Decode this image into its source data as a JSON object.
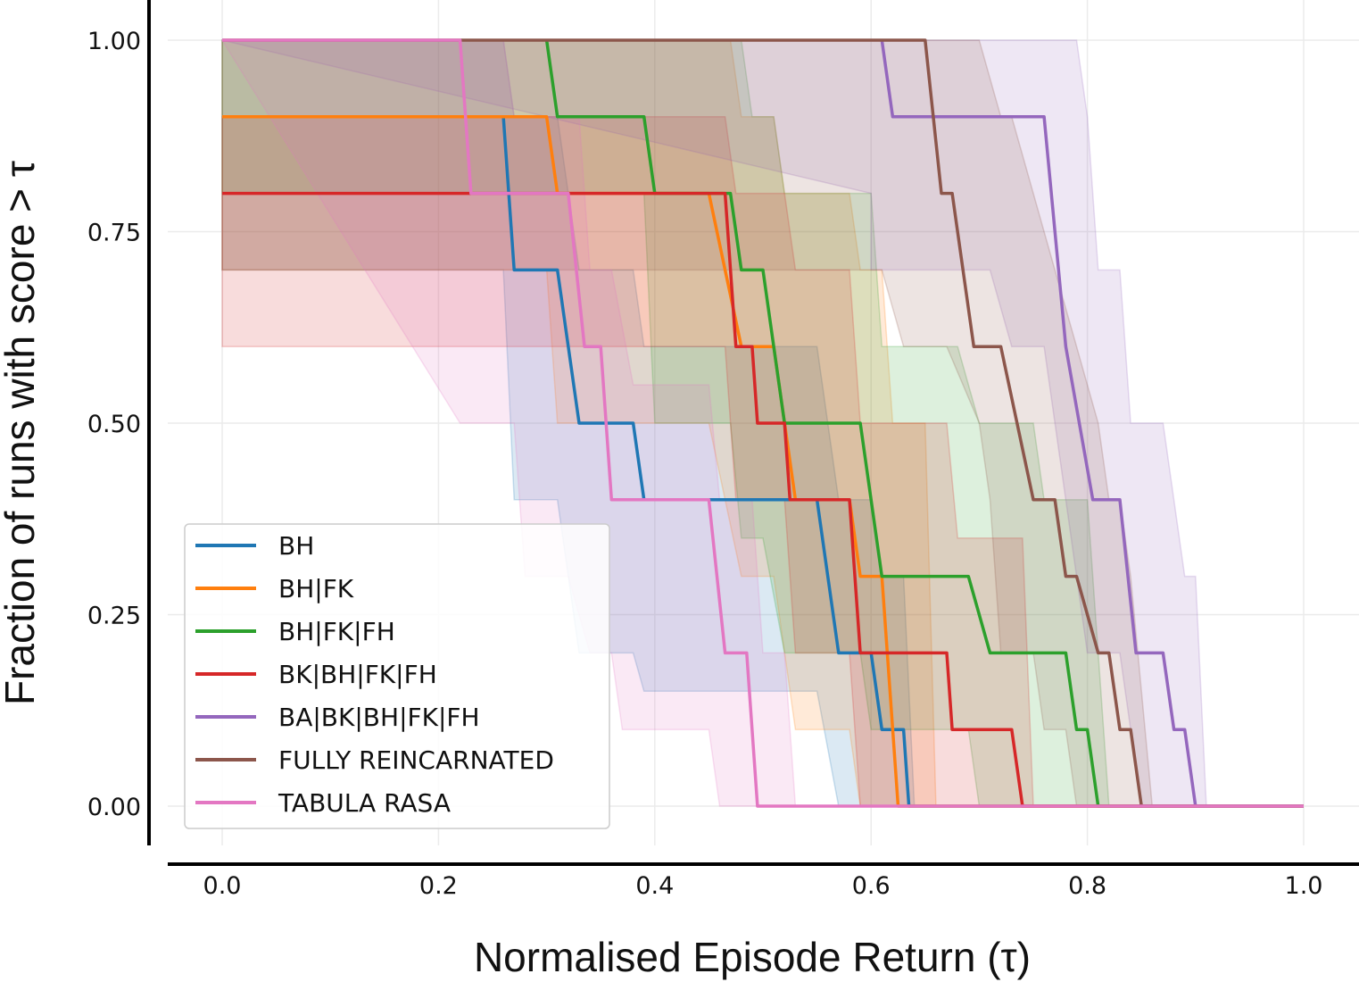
{
  "chart_data": {
    "type": "line",
    "title": "",
    "xlabel": "Normalised Episode Return (τ)",
    "ylabel": "Fraction of runs with score > τ",
    "xlim": [
      -0.05,
      1.05
    ],
    "ylim": [
      -0.05,
      1.05
    ],
    "x_ticks": [
      0.0,
      0.2,
      0.4,
      0.6,
      0.8,
      1.0
    ],
    "x_tick_labels": [
      "0.0",
      "0.2",
      "0.4",
      "0.6",
      "0.8",
      "1.0"
    ],
    "y_ticks": [
      0.0,
      0.25,
      0.5,
      0.75,
      1.0
    ],
    "y_tick_labels": [
      "0.00",
      "0.25",
      "0.50",
      "0.75",
      "1.00"
    ],
    "grid": true,
    "step": true,
    "legend_position": "lower-left",
    "series": [
      {
        "name": "BH",
        "color": "#1f77b4",
        "points": [
          [
            0.26,
            0.9
          ],
          [
            0.27,
            0.7
          ],
          [
            0.31,
            0.7
          ],
          [
            0.33,
            0.5
          ],
          [
            0.38,
            0.5
          ],
          [
            0.39,
            0.4
          ],
          [
            0.55,
            0.4
          ],
          [
            0.57,
            0.2
          ],
          [
            0.6,
            0.2
          ],
          [
            0.61,
            0.1
          ],
          [
            0.63,
            0.1
          ],
          [
            0.635,
            0.0
          ],
          [
            1.0,
            0.0
          ]
        ],
        "band_upper": [
          [
            0.0,
            1.0
          ],
          [
            0.26,
            1.0
          ],
          [
            0.27,
            0.9
          ],
          [
            0.31,
            0.9
          ],
          [
            0.33,
            0.7
          ],
          [
            0.38,
            0.7
          ],
          [
            0.39,
            0.6
          ],
          [
            0.55,
            0.6
          ],
          [
            0.57,
            0.4
          ],
          [
            0.6,
            0.4
          ],
          [
            0.61,
            0.3
          ],
          [
            0.63,
            0.3
          ],
          [
            0.64,
            0.0
          ],
          [
            1.0,
            0.0
          ]
        ],
        "band_lower": [
          [
            0.0,
            0.7
          ],
          [
            0.26,
            0.7
          ],
          [
            0.27,
            0.4
          ],
          [
            0.31,
            0.4
          ],
          [
            0.33,
            0.2
          ],
          [
            0.38,
            0.2
          ],
          [
            0.39,
            0.15
          ],
          [
            0.55,
            0.15
          ],
          [
            0.57,
            0.0
          ],
          [
            1.0,
            0.0
          ]
        ]
      },
      {
        "name": "BH|FK",
        "color": "#ff7f0e",
        "points": [
          [
            0.0,
            0.9
          ],
          [
            0.3,
            0.9
          ],
          [
            0.31,
            0.8
          ],
          [
            0.45,
            0.8
          ],
          [
            0.48,
            0.6
          ],
          [
            0.51,
            0.6
          ],
          [
            0.53,
            0.4
          ],
          [
            0.58,
            0.4
          ],
          [
            0.59,
            0.3
          ],
          [
            0.61,
            0.3
          ],
          [
            0.625,
            0.0
          ],
          [
            1.0,
            0.0
          ]
        ],
        "band_upper": [
          [
            0.0,
            1.0
          ],
          [
            0.47,
            1.0
          ],
          [
            0.48,
            0.9
          ],
          [
            0.51,
            0.9
          ],
          [
            0.52,
            0.8
          ],
          [
            0.58,
            0.8
          ],
          [
            0.59,
            0.7
          ],
          [
            0.61,
            0.7
          ],
          [
            0.62,
            0.5
          ],
          [
            0.65,
            0.5
          ],
          [
            0.66,
            0.0
          ],
          [
            1.0,
            0.0
          ]
        ],
        "band_lower": [
          [
            0.0,
            0.7
          ],
          [
            0.3,
            0.7
          ],
          [
            0.31,
            0.5
          ],
          [
            0.45,
            0.5
          ],
          [
            0.48,
            0.3
          ],
          [
            0.51,
            0.3
          ],
          [
            0.53,
            0.1
          ],
          [
            0.58,
            0.1
          ],
          [
            0.59,
            0.0
          ],
          [
            1.0,
            0.0
          ]
        ]
      },
      {
        "name": "BH|FK|FH",
        "color": "#2ca02c",
        "points": [
          [
            0.3,
            1.0
          ],
          [
            0.31,
            0.9
          ],
          [
            0.39,
            0.9
          ],
          [
            0.4,
            0.8
          ],
          [
            0.47,
            0.8
          ],
          [
            0.48,
            0.7
          ],
          [
            0.5,
            0.7
          ],
          [
            0.52,
            0.5
          ],
          [
            0.59,
            0.5
          ],
          [
            0.61,
            0.3
          ],
          [
            0.69,
            0.3
          ],
          [
            0.71,
            0.2
          ],
          [
            0.78,
            0.2
          ],
          [
            0.79,
            0.1
          ],
          [
            0.8,
            0.1
          ],
          [
            0.81,
            0.0
          ],
          [
            1.0,
            0.0
          ]
        ],
        "band_upper": [
          [
            0.0,
            1.0
          ],
          [
            0.48,
            1.0
          ],
          [
            0.49,
            0.9
          ],
          [
            0.51,
            0.9
          ],
          [
            0.52,
            0.8
          ],
          [
            0.6,
            0.8
          ],
          [
            0.61,
            0.6
          ],
          [
            0.68,
            0.6
          ],
          [
            0.7,
            0.5
          ],
          [
            0.75,
            0.5
          ],
          [
            0.76,
            0.4
          ],
          [
            0.8,
            0.4
          ],
          [
            0.82,
            0.0
          ],
          [
            1.0,
            0.0
          ]
        ],
        "band_lower": [
          [
            0.0,
            0.8
          ],
          [
            0.39,
            0.8
          ],
          [
            0.4,
            0.5
          ],
          [
            0.47,
            0.5
          ],
          [
            0.48,
            0.35
          ],
          [
            0.5,
            0.35
          ],
          [
            0.52,
            0.2
          ],
          [
            0.59,
            0.2
          ],
          [
            0.6,
            0.1
          ],
          [
            0.69,
            0.1
          ],
          [
            0.7,
            0.0
          ],
          [
            1.0,
            0.0
          ]
        ]
      },
      {
        "name": "BK|BH|FK|FH",
        "color": "#d62728",
        "points": [
          [
            0.0,
            0.8
          ],
          [
            0.465,
            0.8
          ],
          [
            0.475,
            0.6
          ],
          [
            0.49,
            0.6
          ],
          [
            0.495,
            0.5
          ],
          [
            0.52,
            0.5
          ],
          [
            0.525,
            0.4
          ],
          [
            0.58,
            0.4
          ],
          [
            0.59,
            0.2
          ],
          [
            0.67,
            0.2
          ],
          [
            0.675,
            0.1
          ],
          [
            0.73,
            0.1
          ],
          [
            0.74,
            0.0
          ],
          [
            1.0,
            0.0
          ]
        ],
        "band_upper": [
          [
            0.0,
            0.9
          ],
          [
            0.465,
            0.9
          ],
          [
            0.475,
            0.8
          ],
          [
            0.52,
            0.8
          ],
          [
            0.53,
            0.7
          ],
          [
            0.58,
            0.7
          ],
          [
            0.59,
            0.5
          ],
          [
            0.67,
            0.5
          ],
          [
            0.68,
            0.35
          ],
          [
            0.74,
            0.35
          ],
          [
            0.75,
            0.0
          ],
          [
            1.0,
            0.0
          ]
        ],
        "band_lower": [
          [
            0.0,
            0.6
          ],
          [
            0.465,
            0.6
          ],
          [
            0.475,
            0.4
          ],
          [
            0.52,
            0.4
          ],
          [
            0.53,
            0.2
          ],
          [
            0.58,
            0.2
          ],
          [
            0.59,
            0.0
          ],
          [
            1.0,
            0.0
          ]
        ]
      },
      {
        "name": "BA|BK|BH|FK|FH",
        "color": "#9467bd",
        "points": [
          [
            0.61,
            1.0
          ],
          [
            0.62,
            0.9
          ],
          [
            0.76,
            0.9
          ],
          [
            0.78,
            0.6
          ],
          [
            0.805,
            0.4
          ],
          [
            0.83,
            0.4
          ],
          [
            0.845,
            0.2
          ],
          [
            0.87,
            0.2
          ],
          [
            0.88,
            0.1
          ],
          [
            0.89,
            0.1
          ],
          [
            0.9,
            0.0
          ],
          [
            1.0,
            0.0
          ]
        ],
        "band_upper": [
          [
            0.0,
            1.0
          ],
          [
            0.79,
            1.0
          ],
          [
            0.8,
            0.9
          ],
          [
            0.81,
            0.7
          ],
          [
            0.83,
            0.7
          ],
          [
            0.84,
            0.5
          ],
          [
            0.87,
            0.5
          ],
          [
            0.89,
            0.3
          ],
          [
            0.9,
            0.3
          ],
          [
            0.91,
            0.0
          ],
          [
            1.0,
            0.0
          ]
        ],
        "band_lower": [
          [
            0.6,
            0.8
          ],
          [
            0.6,
            0.7
          ],
          [
            0.71,
            0.7
          ],
          [
            0.73,
            0.6
          ],
          [
            0.76,
            0.6
          ],
          [
            0.78,
            0.4
          ],
          [
            0.8,
            0.2
          ],
          [
            0.83,
            0.2
          ],
          [
            0.84,
            0.1
          ],
          [
            0.85,
            0.0
          ],
          [
            1.0,
            0.0
          ]
        ]
      },
      {
        "name": "FULLY REINCARNATED",
        "color": "#8c564b",
        "points": [
          [
            0.0,
            1.0
          ],
          [
            0.65,
            1.0
          ],
          [
            0.665,
            0.8
          ],
          [
            0.675,
            0.8
          ],
          [
            0.695,
            0.6
          ],
          [
            0.72,
            0.6
          ],
          [
            0.75,
            0.4
          ],
          [
            0.77,
            0.4
          ],
          [
            0.78,
            0.3
          ],
          [
            0.79,
            0.3
          ],
          [
            0.81,
            0.2
          ],
          [
            0.82,
            0.2
          ],
          [
            0.83,
            0.1
          ],
          [
            0.84,
            0.1
          ],
          [
            0.85,
            0.0
          ],
          [
            1.0,
            0.0
          ]
        ],
        "band_upper": [
          [
            0.0,
            1.0
          ],
          [
            0.7,
            1.0
          ],
          [
            0.72,
            0.9
          ],
          [
            0.73,
            0.9
          ],
          [
            0.75,
            0.8
          ],
          [
            0.77,
            0.7
          ],
          [
            0.79,
            0.6
          ],
          [
            0.81,
            0.5
          ],
          [
            0.82,
            0.4
          ],
          [
            0.83,
            0.4
          ],
          [
            0.84,
            0.3
          ],
          [
            0.86,
            0.0
          ],
          [
            1.0,
            0.0
          ]
        ],
        "band_lower": [
          [
            0.0,
            0.7
          ],
          [
            0.6,
            0.7
          ],
          [
            0.61,
            0.7
          ],
          [
            0.63,
            0.6
          ],
          [
            0.67,
            0.6
          ],
          [
            0.7,
            0.5
          ],
          [
            0.71,
            0.4
          ],
          [
            0.72,
            0.2
          ],
          [
            0.75,
            0.2
          ],
          [
            0.76,
            0.1
          ],
          [
            0.78,
            0.1
          ],
          [
            0.79,
            0.0
          ],
          [
            1.0,
            0.0
          ]
        ]
      },
      {
        "name": "TABULA RASA",
        "color": "#e377c2",
        "points": [
          [
            0.0,
            1.0
          ],
          [
            0.22,
            1.0
          ],
          [
            0.23,
            0.8
          ],
          [
            0.32,
            0.8
          ],
          [
            0.335,
            0.6
          ],
          [
            0.35,
            0.6
          ],
          [
            0.36,
            0.4
          ],
          [
            0.45,
            0.4
          ],
          [
            0.465,
            0.2
          ],
          [
            0.485,
            0.2
          ],
          [
            0.495,
            0.0
          ],
          [
            1.0,
            0.0
          ]
        ],
        "band_upper": [
          [
            0.0,
            1.0
          ],
          [
            0.26,
            1.0
          ],
          [
            0.27,
            0.9
          ],
          [
            0.33,
            0.9
          ],
          [
            0.34,
            0.7
          ],
          [
            0.36,
            0.7
          ],
          [
            0.38,
            0.55
          ],
          [
            0.45,
            0.55
          ],
          [
            0.46,
            0.4
          ],
          [
            0.49,
            0.4
          ],
          [
            0.5,
            0.2
          ],
          [
            0.52,
            0.2
          ],
          [
            0.53,
            0.0
          ],
          [
            1.0,
            0.0
          ]
        ],
        "band_lower": [
          [
            0.22,
            0.5
          ],
          [
            0.22,
            0.5
          ],
          [
            0.27,
            0.5
          ],
          [
            0.28,
            0.3
          ],
          [
            0.32,
            0.3
          ],
          [
            0.34,
            0.2
          ],
          [
            0.36,
            0.2
          ],
          [
            0.37,
            0.1
          ],
          [
            0.45,
            0.1
          ],
          [
            0.46,
            0.0
          ],
          [
            1.0,
            0.0
          ]
        ]
      }
    ]
  }
}
